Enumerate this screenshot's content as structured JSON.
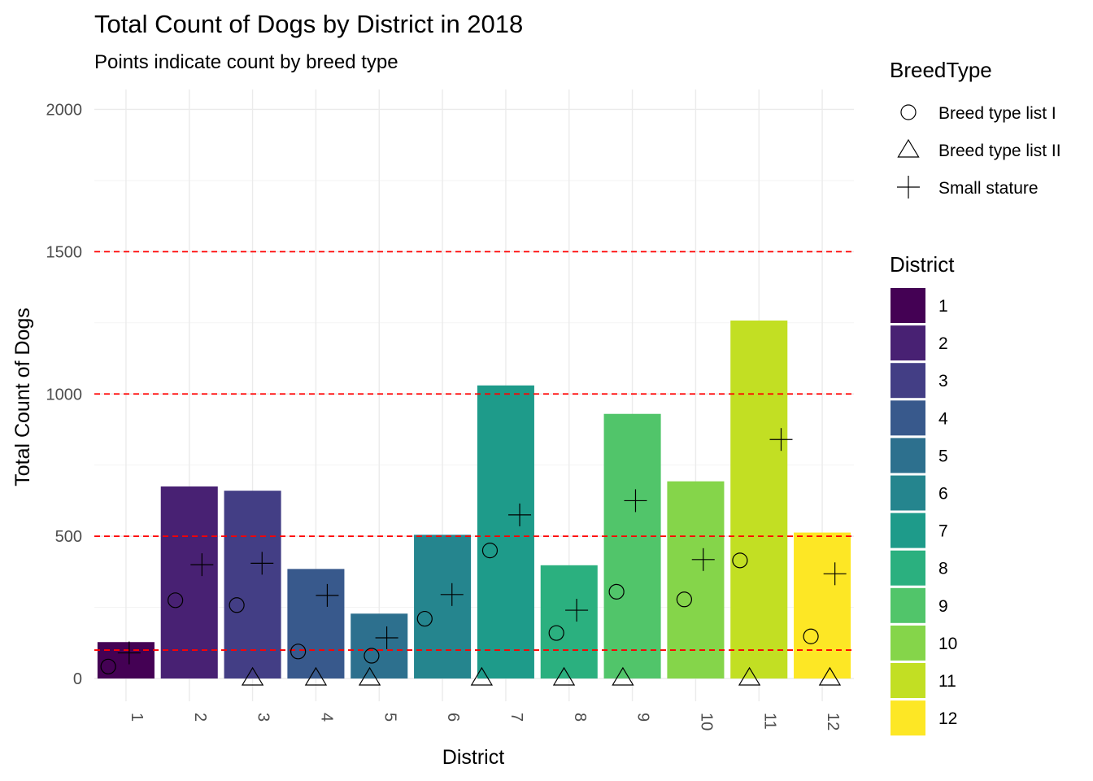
{
  "chart_data": {
    "type": "bar",
    "title": "Total Count of Dogs by District in 2018",
    "subtitle": "Points indicate count by breed type",
    "xlabel": "District",
    "ylabel": "Total Count of Dogs",
    "ylim": [
      -80,
      2070
    ],
    "yticks": [
      0,
      500,
      1000,
      1500,
      2000
    ],
    "grid": true,
    "reference_lines": [
      100,
      500,
      1000,
      1500
    ],
    "reference_line_color": "#ff0000",
    "categories": [
      "1",
      "2",
      "3",
      "4",
      "5",
      "6",
      "7",
      "8",
      "9",
      "10",
      "11",
      "12"
    ],
    "totals": [
      128,
      675,
      660,
      385,
      228,
      505,
      1030,
      398,
      930,
      693,
      1258,
      513
    ],
    "bar_colors": [
      "#440154",
      "#482173",
      "#433E85",
      "#38598C",
      "#2D708E",
      "#25858E",
      "#1E9B8A",
      "#2BB07F",
      "#51C56A",
      "#85D54A",
      "#C2DF23",
      "#FDE725"
    ],
    "point_series": [
      {
        "name": "Breed type list I",
        "shape": "circle",
        "values": [
          42,
          275,
          258,
          95,
          80,
          210,
          450,
          160,
          305,
          278,
          415,
          148
        ],
        "offsets": [
          -0.28,
          -0.22,
          -0.25,
          -0.28,
          -0.12,
          -0.28,
          -0.25,
          -0.2,
          -0.25,
          -0.18,
          -0.3,
          -0.18
        ]
      },
      {
        "name": "Breed type list II",
        "shape": "triangle",
        "values": [
          null,
          null,
          3,
          3,
          3,
          null,
          3,
          3,
          3,
          null,
          3,
          3
        ],
        "offsets": [
          0,
          0,
          0,
          0,
          -0.15,
          0,
          -0.38,
          -0.08,
          -0.15,
          0,
          -0.15,
          0.12
        ]
      },
      {
        "name": "Small stature",
        "shape": "plus",
        "values": [
          90,
          400,
          405,
          292,
          143,
          295,
          575,
          240,
          625,
          418,
          840,
          368
        ],
        "offsets": [
          0.05,
          0.2,
          0.15,
          0.18,
          0.12,
          0.15,
          0.22,
          0.12,
          0.05,
          0.12,
          0.35,
          0.2
        ]
      }
    ],
    "legends": [
      {
        "title": "BreedType",
        "entries": [
          "Breed type list I",
          "Breed type list II",
          "Small stature"
        ]
      },
      {
        "title": "District",
        "entries": [
          "1",
          "2",
          "3",
          "4",
          "5",
          "6",
          "7",
          "8",
          "9",
          "10",
          "11",
          "12"
        ]
      }
    ],
    "legend_position": "right"
  }
}
